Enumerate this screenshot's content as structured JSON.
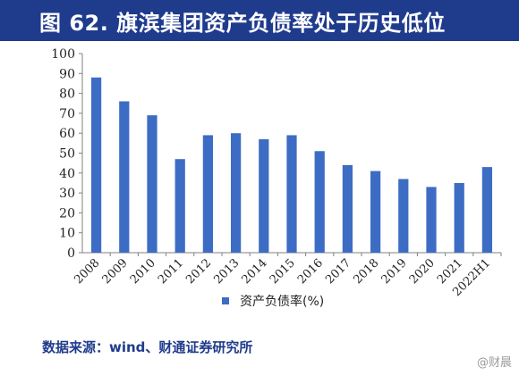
{
  "header": {
    "title": "图 62. 旗滨集团资产负债率处于历史低位"
  },
  "footer": {
    "source": "数据来源：wind、财通证券研究所",
    "watermark": "@财晨"
  },
  "colors": {
    "banner": "#1f3b8c",
    "bar": "#3d6cc4",
    "source_text": "#1f3b8c"
  },
  "chart_data": {
    "type": "bar",
    "title": "",
    "xlabel": "",
    "ylabel": "",
    "categories": [
      "2008",
      "2009",
      "2010",
      "2011",
      "2012",
      "2013",
      "2014",
      "2015",
      "2016",
      "2017",
      "2018",
      "2019",
      "2020",
      "2021",
      "2022H1"
    ],
    "series": [
      {
        "name": "资产负债率(%)",
        "values": [
          88,
          76,
          69,
          47,
          59,
          60,
          57,
          59,
          51,
          44,
          41,
          37,
          33,
          35,
          43
        ]
      }
    ],
    "ylim": [
      0,
      100
    ],
    "yticks": [
      0,
      10,
      20,
      30,
      40,
      50,
      60,
      70,
      80,
      90,
      100
    ],
    "grid": false,
    "legend_position": "bottom"
  }
}
